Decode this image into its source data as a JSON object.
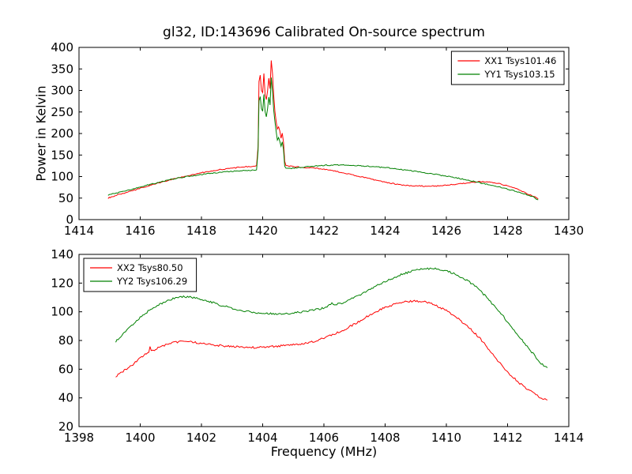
{
  "figure": {
    "background": "#ffffff"
  },
  "chart_data": [
    {
      "type": "line",
      "title": "gl32, ID:143696 Calibrated On-source spectrum",
      "ylabel": "Power in Kelvin",
      "xlabel": "",
      "xlim": [
        1414,
        1430
      ],
      "ylim": [
        0,
        400
      ],
      "xticks": [
        1414,
        1416,
        1418,
        1420,
        1422,
        1424,
        1426,
        1428,
        1430
      ],
      "yticks": [
        0,
        50,
        100,
        150,
        200,
        250,
        300,
        350,
        400
      ],
      "legend_position": "upper right",
      "grid": false,
      "series": [
        {
          "name": "XX1 Tsys101.46",
          "color": "#ff0000",
          "noise": 1.2,
          "points": [
            [
              1414.95,
              50
            ],
            [
              1415.1,
              54
            ],
            [
              1415.3,
              58
            ],
            [
              1415.6,
              64
            ],
            [
              1416.0,
              73
            ],
            [
              1416.4,
              81
            ],
            [
              1416.8,
              89
            ],
            [
              1417.2,
              96
            ],
            [
              1417.6,
              103
            ],
            [
              1418.0,
              109
            ],
            [
              1418.4,
              114
            ],
            [
              1418.8,
              118
            ],
            [
              1419.2,
              121
            ],
            [
              1419.5,
              123
            ],
            [
              1419.7,
              124
            ],
            [
              1419.8,
              125
            ],
            [
              1419.85,
              170
            ],
            [
              1419.88,
              320
            ],
            [
              1419.92,
              335
            ],
            [
              1419.96,
              300
            ],
            [
              1420.0,
              295
            ],
            [
              1420.04,
              340
            ],
            [
              1420.08,
              290
            ],
            [
              1420.12,
              278
            ],
            [
              1420.16,
              300
            ],
            [
              1420.2,
              328
            ],
            [
              1420.24,
              305
            ],
            [
              1420.28,
              370
            ],
            [
              1420.32,
              340
            ],
            [
              1420.36,
              290
            ],
            [
              1420.4,
              252
            ],
            [
              1420.44,
              228
            ],
            [
              1420.48,
              210
            ],
            [
              1420.52,
              215
            ],
            [
              1420.56,
              205
            ],
            [
              1420.6,
              188
            ],
            [
              1420.64,
              200
            ],
            [
              1420.68,
              180
            ],
            [
              1420.72,
              135
            ],
            [
              1420.76,
              126
            ],
            [
              1420.9,
              124
            ],
            [
              1421.2,
              122
            ],
            [
              1421.6,
              120
            ],
            [
              1422.0,
              117
            ],
            [
              1422.4,
              112
            ],
            [
              1422.8,
              106
            ],
            [
              1423.2,
              100
            ],
            [
              1423.6,
              93
            ],
            [
              1424.0,
              87
            ],
            [
              1424.4,
              82
            ],
            [
              1424.8,
              79
            ],
            [
              1425.2,
              78
            ],
            [
              1425.6,
              78
            ],
            [
              1426.0,
              80
            ],
            [
              1426.4,
              83
            ],
            [
              1426.8,
              86
            ],
            [
              1427.1,
              88
            ],
            [
              1427.4,
              87
            ],
            [
              1427.7,
              84
            ],
            [
              1428.0,
              78
            ],
            [
              1428.3,
              71
            ],
            [
              1428.6,
              62
            ],
            [
              1428.9,
              52
            ],
            [
              1429.0,
              48
            ]
          ]
        },
        {
          "name": "YY1 Tsys103.15",
          "color": "#008000",
          "noise": 1.2,
          "points": [
            [
              1414.95,
              57
            ],
            [
              1415.1,
              60
            ],
            [
              1415.3,
              63
            ],
            [
              1415.6,
              68
            ],
            [
              1416.0,
              76
            ],
            [
              1416.4,
              83
            ],
            [
              1416.8,
              90
            ],
            [
              1417.2,
              96
            ],
            [
              1417.6,
              101
            ],
            [
              1418.0,
              105
            ],
            [
              1418.4,
              108
            ],
            [
              1418.8,
              111
            ],
            [
              1419.2,
              113
            ],
            [
              1419.5,
              114
            ],
            [
              1419.7,
              115
            ],
            [
              1419.8,
              116
            ],
            [
              1419.85,
              160
            ],
            [
              1419.88,
              275
            ],
            [
              1419.92,
              285
            ],
            [
              1419.96,
              258
            ],
            [
              1420.0,
              252
            ],
            [
              1420.04,
              292
            ],
            [
              1420.08,
              250
            ],
            [
              1420.12,
              240
            ],
            [
              1420.16,
              258
            ],
            [
              1420.2,
              285
            ],
            [
              1420.24,
              265
            ],
            [
              1420.28,
              330
            ],
            [
              1420.32,
              300
            ],
            [
              1420.36,
              255
            ],
            [
              1420.4,
              228
            ],
            [
              1420.44,
              205
            ],
            [
              1420.48,
              185
            ],
            [
              1420.52,
              190
            ],
            [
              1420.56,
              182
            ],
            [
              1420.6,
              170
            ],
            [
              1420.64,
              180
            ],
            [
              1420.68,
              162
            ],
            [
              1420.72,
              125
            ],
            [
              1420.76,
              119
            ],
            [
              1420.9,
              119
            ],
            [
              1421.2,
              121
            ],
            [
              1421.6,
              124
            ],
            [
              1422.0,
              126
            ],
            [
              1422.4,
              127
            ],
            [
              1422.8,
              126
            ],
            [
              1423.2,
              125
            ],
            [
              1423.6,
              123
            ],
            [
              1424.0,
              121
            ],
            [
              1424.4,
              118
            ],
            [
              1424.8,
              114
            ],
            [
              1425.2,
              110
            ],
            [
              1425.6,
              106
            ],
            [
              1426.0,
              101
            ],
            [
              1426.4,
              96
            ],
            [
              1426.8,
              90
            ],
            [
              1427.2,
              84
            ],
            [
              1427.6,
              78
            ],
            [
              1428.0,
              71
            ],
            [
              1428.4,
              63
            ],
            [
              1428.8,
              54
            ],
            [
              1429.0,
              46
            ]
          ]
        }
      ]
    },
    {
      "type": "line",
      "title": "",
      "ylabel": "",
      "xlabel": "Frequency (MHz)",
      "xlim": [
        1398,
        1414
      ],
      "ylim": [
        20,
        140
      ],
      "xticks": [
        1398,
        1400,
        1402,
        1404,
        1406,
        1408,
        1410,
        1412,
        1414
      ],
      "yticks": [
        20,
        40,
        60,
        80,
        100,
        120,
        140
      ],
      "legend_position": "upper left",
      "grid": false,
      "series": [
        {
          "name": "XX2 Tsys80.50",
          "color": "#ff0000",
          "noise": 0.7,
          "points": [
            [
              1399.2,
              55
            ],
            [
              1399.4,
              58
            ],
            [
              1399.6,
              61
            ],
            [
              1399.8,
              64
            ],
            [
              1400.0,
              68
            ],
            [
              1400.2,
              71
            ],
            [
              1400.28,
              72
            ],
            [
              1400.32,
              76.5
            ],
            [
              1400.36,
              72.5
            ],
            [
              1400.5,
              74
            ],
            [
              1400.7,
              76
            ],
            [
              1401.0,
              78.5
            ],
            [
              1401.3,
              79
            ],
            [
              1401.6,
              79
            ],
            [
              1402.0,
              78
            ],
            [
              1402.4,
              77
            ],
            [
              1402.8,
              76
            ],
            [
              1403.2,
              75.5
            ],
            [
              1403.6,
              75
            ],
            [
              1404.0,
              75.5
            ],
            [
              1404.4,
              76
            ],
            [
              1404.8,
              76.5
            ],
            [
              1405.2,
              77.5
            ],
            [
              1405.6,
              79
            ],
            [
              1406.0,
              81.5
            ],
            [
              1406.4,
              85
            ],
            [
              1406.8,
              89
            ],
            [
              1407.2,
              94
            ],
            [
              1407.6,
              99
            ],
            [
              1408.0,
              103
            ],
            [
              1408.4,
              106
            ],
            [
              1408.7,
              107
            ],
            [
              1409.0,
              107.5
            ],
            [
              1409.3,
              107
            ],
            [
              1409.6,
              105
            ],
            [
              1410.0,
              101
            ],
            [
              1410.4,
              95
            ],
            [
              1410.8,
              88
            ],
            [
              1411.2,
              79
            ],
            [
              1411.6,
              68
            ],
            [
              1412.0,
              58
            ],
            [
              1412.4,
              50
            ],
            [
              1412.8,
              44
            ],
            [
              1413.1,
              40
            ],
            [
              1413.3,
              38.5
            ]
          ]
        },
        {
          "name": "YY2 Tsys106.29",
          "color": "#008000",
          "noise": 0.7,
          "points": [
            [
              1399.2,
              79
            ],
            [
              1399.4,
              84
            ],
            [
              1399.6,
              88
            ],
            [
              1399.8,
              92
            ],
            [
              1400.0,
              96
            ],
            [
              1400.3,
              101
            ],
            [
              1400.6,
              105
            ],
            [
              1400.9,
              108
            ],
            [
              1401.2,
              110
            ],
            [
              1401.5,
              110.5
            ],
            [
              1401.8,
              109.5
            ],
            [
              1402.1,
              108
            ],
            [
              1402.5,
              105.5
            ],
            [
              1402.9,
              103
            ],
            [
              1403.3,
              101
            ],
            [
              1403.7,
              99.5
            ],
            [
              1404.1,
              99
            ],
            [
              1404.5,
              98.5
            ],
            [
              1404.9,
              99
            ],
            [
              1405.3,
              100
            ],
            [
              1405.7,
              101.5
            ],
            [
              1406.1,
              103
            ],
            [
              1406.26,
              106
            ],
            [
              1406.34,
              104.5
            ],
            [
              1406.7,
              107
            ],
            [
              1407.0,
              110
            ],
            [
              1407.4,
              114
            ],
            [
              1407.8,
              119
            ],
            [
              1408.2,
              123
            ],
            [
              1408.6,
              126.5
            ],
            [
              1409.0,
              129
            ],
            [
              1409.3,
              130
            ],
            [
              1409.6,
              130
            ],
            [
              1409.9,
              129
            ],
            [
              1410.2,
              127
            ],
            [
              1410.5,
              124
            ],
            [
              1410.8,
              120
            ],
            [
              1411.1,
              115
            ],
            [
              1411.4,
              108
            ],
            [
              1411.7,
              101
            ],
            [
              1412.0,
              93
            ],
            [
              1412.3,
              85
            ],
            [
              1412.6,
              77
            ],
            [
              1412.9,
              69
            ],
            [
              1413.1,
              64
            ],
            [
              1413.3,
              61
            ]
          ]
        }
      ]
    }
  ]
}
